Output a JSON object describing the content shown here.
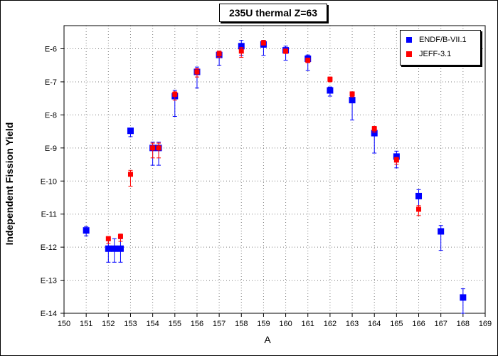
{
  "colors": {
    "endf": "#0000ff",
    "jeff": "#ff0000",
    "grid": "#808080"
  },
  "chart_data": {
    "type": "scatter",
    "title": "235U thermal Z=63",
    "xlabel": "A",
    "ylabel": "Independent Fission Yield",
    "xlim": [
      150,
      169
    ],
    "ylim_log10": [
      -14,
      -5.3
    ],
    "y_scale": "log",
    "grid": true,
    "legend": "top-right",
    "x_ticks": [
      "150",
      "151",
      "152",
      "153",
      "154",
      "155",
      "156",
      "157",
      "158",
      "159",
      "160",
      "161",
      "162",
      "163",
      "164",
      "165",
      "166",
      "167",
      "168",
      "169"
    ],
    "y_ticks": [
      "E-6",
      "E-7",
      "E-8",
      "E-9",
      "E-10",
      "E-11",
      "E-12",
      "E-13",
      "E-14"
    ],
    "series": [
      {
        "name": "ENDF/B-VII.1",
        "color": "#0000ff",
        "points": [
          {
            "x": 151,
            "y": "3.2E-12",
            "err_lo": "2.2E-12",
            "err_hi": "4.2E-12"
          },
          {
            "x": 152,
            "y": "9E-13",
            "err_lo": "3.5E-13",
            "err_hi": "1.8E-12"
          },
          {
            "x": 152.27,
            "y": "9E-13",
            "err_lo": "3.5E-13",
            "err_hi": "1.8E-12"
          },
          {
            "x": 152.55,
            "y": "9E-13",
            "err_lo": "3.5E-13",
            "err_hi": "1.8E-12"
          },
          {
            "x": 153,
            "y": "3.3E-9",
            "err_lo": "2.2E-9",
            "err_hi": "3.8E-9"
          },
          {
            "x": 154,
            "y": "1.0E-9",
            "err_lo": "3E-10",
            "err_hi": "1.5E-9"
          },
          {
            "x": 154.27,
            "y": "1.0E-9",
            "err_lo": "3E-10",
            "err_hi": "1.5E-9"
          },
          {
            "x": 155,
            "y": "3.7E-8",
            "err_lo": "9E-9",
            "err_hi": "5.5E-8"
          },
          {
            "x": 156,
            "y": "2.0E-7",
            "err_lo": "6.5E-8",
            "err_hi": "2.8E-7"
          },
          {
            "x": 157,
            "y": "6.5E-7",
            "err_lo": "3.2E-7",
            "err_hi": "8.5E-7"
          },
          {
            "x": 158,
            "y": "1.2E-6",
            "err_lo": "6.3E-7",
            "err_hi": "1.8E-6"
          },
          {
            "x": 159,
            "y": "1.35E-6",
            "err_lo": "6.3E-7",
            "err_hi": "1.8E-6"
          },
          {
            "x": 160,
            "y": "9E-7",
            "err_lo": "4.5E-7",
            "err_hi": "1.2E-6"
          },
          {
            "x": 161,
            "y": "5E-7",
            "err_lo": "2.2E-7",
            "err_hi": "6.5E-7"
          },
          {
            "x": 162,
            "y": "5.5E-8",
            "err_lo": "3.7E-8",
            "err_hi": "7E-8"
          },
          {
            "x": 163,
            "y": "2.8E-8",
            "err_lo": "7E-9",
            "err_hi": "3.5E-8"
          },
          {
            "x": 164,
            "y": "2.8E-9",
            "err_lo": "7E-10",
            "err_hi": "3.5E-9"
          },
          {
            "x": 165,
            "y": "5.5E-10",
            "err_lo": "2.5E-10",
            "err_hi": "8E-10"
          },
          {
            "x": 166,
            "y": "3.5E-11",
            "err_lo": "1.4E-11",
            "err_hi": "5.5E-11"
          },
          {
            "x": 167,
            "y": "3.0E-12",
            "err_lo": "8E-13",
            "err_hi": "4.5E-12"
          },
          {
            "x": 168,
            "y": "3.0E-14",
            "err_lo": "1E-14",
            "err_hi": "5.5E-14"
          }
        ]
      },
      {
        "name": "JEFF-3.1",
        "color": "#ff0000",
        "points": [
          {
            "x": 152,
            "y": "1.8E-12",
            "err_lo": "1.3E-12",
            "err_hi": "2.1E-12"
          },
          {
            "x": 152.55,
            "y": "2.1E-12",
            "err_lo": "1.5E-12",
            "err_hi": "2.5E-12"
          },
          {
            "x": 153,
            "y": "1.6E-10",
            "err_lo": "7E-11",
            "err_hi": "2.1E-10"
          },
          {
            "x": 154,
            "y": "1.0E-9",
            "err_lo": "5E-10",
            "err_hi": "1.4E-9"
          },
          {
            "x": 154.27,
            "y": "1.0E-9",
            "err_lo": "5E-10",
            "err_hi": "1.4E-9"
          },
          {
            "x": 155,
            "y": "4.2E-8",
            "err_lo": "2.8E-8",
            "err_hi": "5E-8"
          },
          {
            "x": 156,
            "y": "2.0E-7",
            "err_lo": "1.4E-7",
            "err_hi": "2.5E-7"
          },
          {
            "x": 157,
            "y": "7.0E-7",
            "err_lo": "5.5E-7",
            "err_hi": "8.5E-7"
          },
          {
            "x": 158,
            "y": "8.5E-7",
            "err_lo": "5.5E-7",
            "err_hi": "1.1E-6"
          },
          {
            "x": 159,
            "y": "1.5E-6",
            "err_lo": "1.3E-6",
            "err_hi": "1.8E-6"
          },
          {
            "x": 160,
            "y": "8.5E-7",
            "err_lo": "7.2E-7",
            "err_hi": "9.8E-7"
          },
          {
            "x": 161,
            "y": "4.5E-7",
            "err_lo": "3.8E-7",
            "err_hi": "5.2E-7"
          },
          {
            "x": 162,
            "y": "1.2E-7",
            "err_lo": "1.0E-7",
            "err_hi": "1.4E-7"
          },
          {
            "x": 163,
            "y": "4.3E-8",
            "err_lo": "3.5E-8",
            "err_hi": "5E-8"
          },
          {
            "x": 164,
            "y": "3.8E-9",
            "err_lo": "3E-9",
            "err_hi": "4.5E-9"
          },
          {
            "x": 165,
            "y": "4.3E-10",
            "err_lo": "3.2E-10",
            "err_hi": "5.2E-10"
          },
          {
            "x": 166,
            "y": "1.4E-11",
            "err_lo": "9E-12",
            "err_hi": "1.8E-11"
          }
        ]
      }
    ]
  }
}
